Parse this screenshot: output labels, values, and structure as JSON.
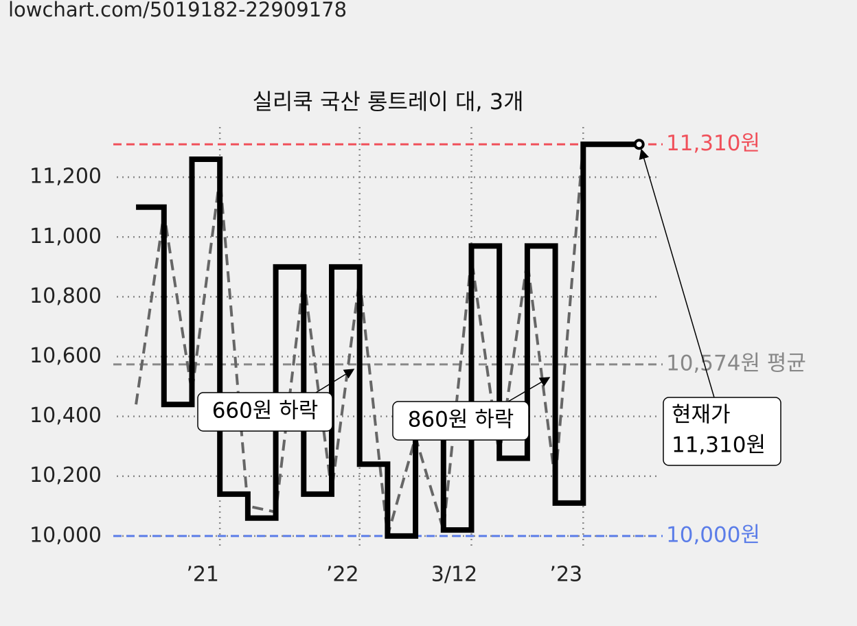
{
  "header": {
    "url": "lowchart.com/5019182-22909178"
  },
  "chart_data": {
    "type": "step",
    "title": "실리쿡 국산 롱트레이 대, 3개",
    "x": [
      0,
      1,
      2,
      3,
      4,
      5,
      6,
      7,
      8,
      9,
      10,
      11,
      12,
      13,
      14,
      15,
      16,
      17,
      18
    ],
    "series": [
      {
        "name": "가격",
        "color": "#000000",
        "values": [
          11100,
          10440,
          11260,
          10140,
          10060,
          10900,
          10140,
          10900,
          10240,
          10000,
          10330,
          10020,
          10970,
          10260,
          10970,
          10110,
          11310,
          11310,
          11310
        ]
      },
      {
        "name": "추세",
        "color": "#666666",
        "dash": true,
        "values": [
          10440,
          11080,
          10480,
          11200,
          10100,
          10080,
          10860,
          10150,
          10860,
          10000,
          10330,
          10020,
          10930,
          10270,
          10920,
          10180,
          11310,
          11310,
          11310
        ]
      }
    ],
    "xlim": [
      -0.69,
      18.72
    ],
    "xticks": [
      {
        "value": 3,
        "label": "’21"
      },
      {
        "value": 8,
        "label": "’22"
      },
      {
        "value": 12,
        "label": "3/12"
      },
      {
        "value": 16,
        "label": "’23"
      }
    ],
    "ylim": [
      9956,
      11368
    ],
    "yticks": [
      {
        "value": 10000,
        "label": "10,000"
      },
      {
        "value": 10200,
        "label": "10,200"
      },
      {
        "value": 10400,
        "label": "10,400"
      },
      {
        "value": 10600,
        "label": "10,600"
      },
      {
        "value": 10800,
        "label": "10,800"
      },
      {
        "value": 11000,
        "label": "11,000"
      },
      {
        "value": 11200,
        "label": "11,200"
      }
    ],
    "grid": true,
    "reference_lines": [
      {
        "value": 11310,
        "label": "11,310원",
        "color": "#f0505a"
      },
      {
        "value": 10574,
        "label": "10,574원 평균",
        "color": "#888888"
      },
      {
        "value": 10000,
        "label": "10,000원",
        "color": "#5b7de8"
      }
    ],
    "annotations": [
      {
        "text": "660원 하락"
      },
      {
        "text": "860원 하락"
      },
      {
        "lines": [
          "현재가",
          "11,310원"
        ]
      }
    ]
  }
}
